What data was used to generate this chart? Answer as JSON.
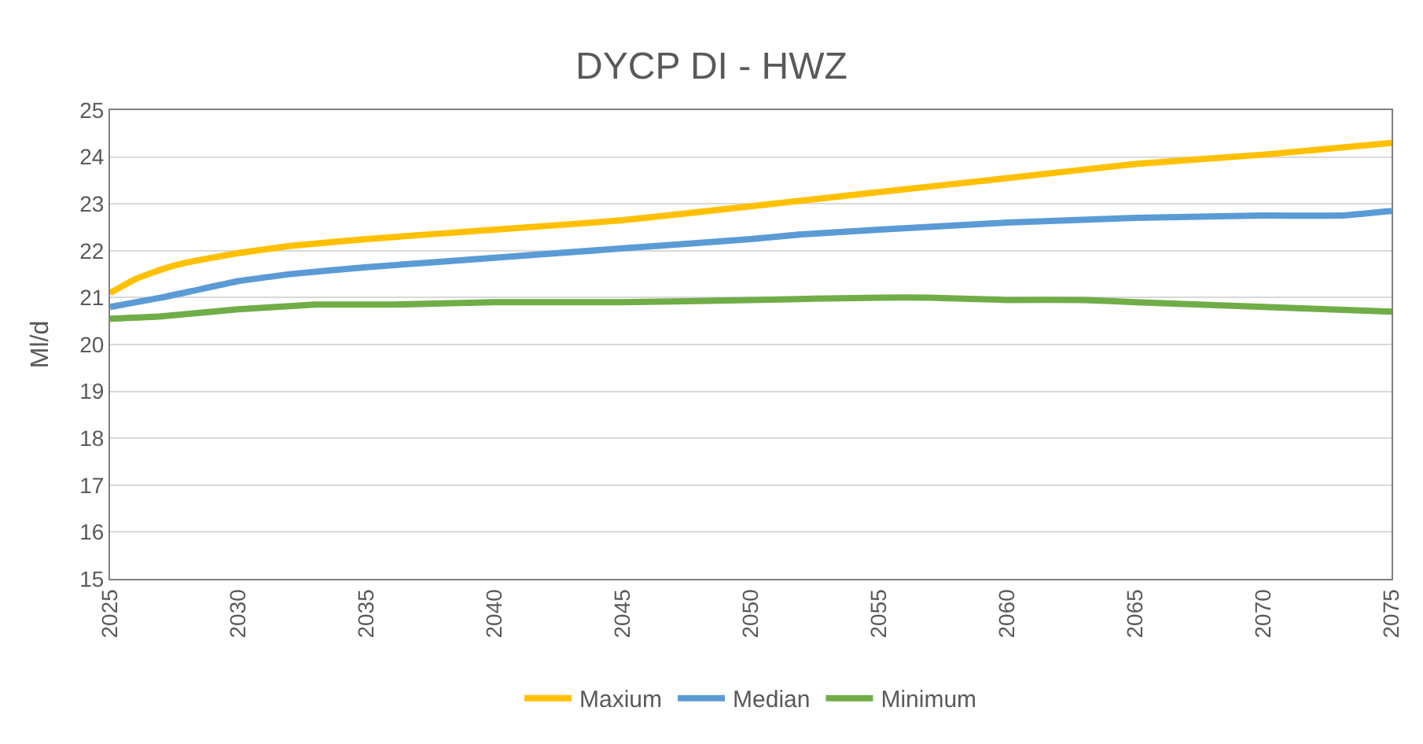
{
  "chart_data": {
    "type": "line",
    "title": "DYCP DI - HWZ",
    "ylabel": "Ml/d",
    "xlim": [
      2025,
      2075
    ],
    "xticks": [
      2025,
      2030,
      2035,
      2040,
      2045,
      2050,
      2055,
      2060,
      2065,
      2070,
      2075
    ],
    "ylim": [
      15,
      25
    ],
    "yticks": [
      15,
      16,
      17,
      18,
      19,
      20,
      21,
      22,
      23,
      24,
      25
    ],
    "grid": "y",
    "legend": "bottom",
    "marker": "none",
    "line_style": "solid",
    "series": [
      {
        "name": "Maxium",
        "color": "#ffc000",
        "x": [
          2025,
          2026,
          2027,
          2028,
          2030,
          2032,
          2035,
          2040,
          2045,
          2050,
          2055,
          2060,
          2065,
          2070,
          2075
        ],
        "values": [
          21.1,
          21.4,
          21.6,
          21.75,
          21.95,
          22.1,
          22.25,
          22.45,
          22.65,
          22.95,
          23.25,
          23.55,
          23.85,
          24.05,
          24.3
        ]
      },
      {
        "name": "Median",
        "color": "#5b9bd5",
        "x": [
          2025,
          2027,
          2030,
          2032,
          2035,
          2040,
          2045,
          2050,
          2052,
          2055,
          2060,
          2065,
          2070,
          2073,
          2075
        ],
        "values": [
          20.8,
          21.0,
          21.35,
          21.5,
          21.65,
          21.85,
          22.05,
          22.25,
          22.35,
          22.45,
          22.6,
          22.7,
          22.75,
          22.75,
          22.85
        ]
      },
      {
        "name": "Minimum",
        "color": "#70ad47",
        "x": [
          2025,
          2027,
          2030,
          2033,
          2036,
          2040,
          2045,
          2050,
          2055,
          2057,
          2060,
          2063,
          2065,
          2070,
          2075
        ],
        "values": [
          20.55,
          20.6,
          20.75,
          20.85,
          20.85,
          20.9,
          20.9,
          20.95,
          21.0,
          21.0,
          20.95,
          20.95,
          20.9,
          20.8,
          20.7
        ]
      }
    ]
  }
}
